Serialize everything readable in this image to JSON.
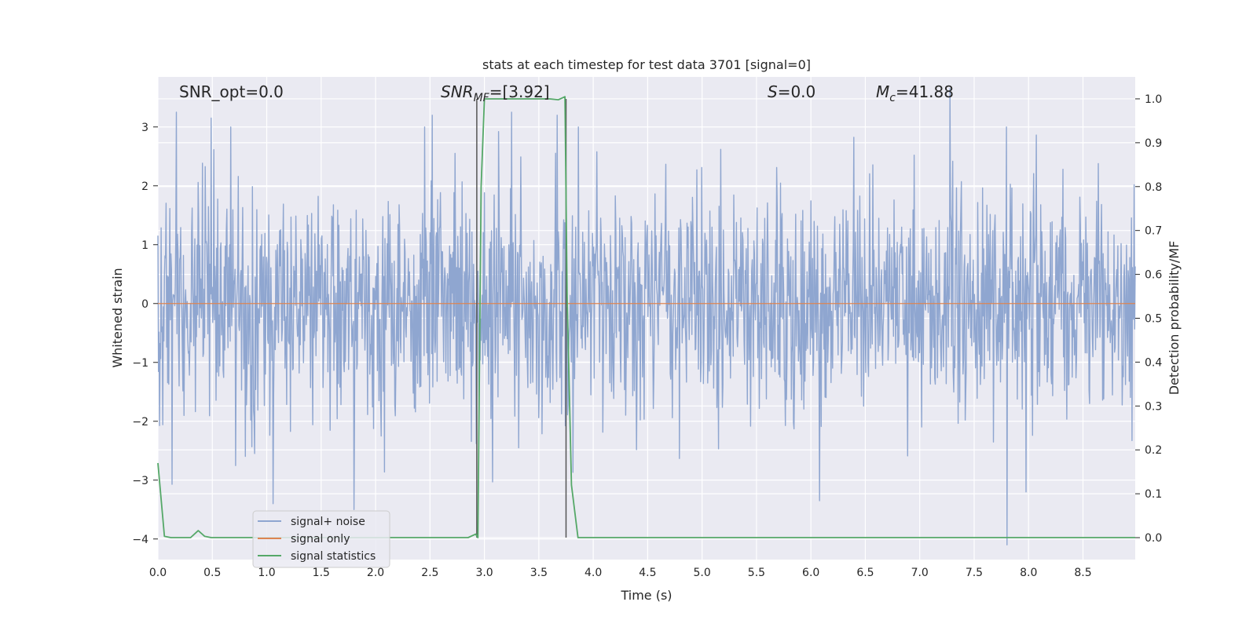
{
  "chart_data": {
    "type": "line",
    "title": "stats at each timestep for test data 3701 [signal=0]",
    "xlabel": "Time (s)",
    "ylabel": "Whitened strain",
    "ylabel_right": "Detection probability/MF",
    "xlim": [
      0.0,
      8.98
    ],
    "ylim": [
      -4.35,
      3.85
    ],
    "ylim_right": [
      -0.05,
      1.05
    ],
    "x_ticks": [
      0.0,
      0.5,
      1.0,
      1.5,
      2.0,
      2.5,
      3.0,
      3.5,
      4.0,
      4.5,
      5.0,
      5.5,
      6.0,
      6.5,
      7.0,
      7.5,
      8.0,
      8.5
    ],
    "x_tick_labels": [
      "0.0",
      "0.5",
      "1.0",
      "1.5",
      "2.0",
      "2.5",
      "3.0",
      "3.5",
      "4.0",
      "4.5",
      "5.0",
      "5.5",
      "6.0",
      "6.5",
      "7.0",
      "7.5",
      "8.0",
      "8.5"
    ],
    "y_ticks": [
      3,
      2,
      1,
      0,
      -1,
      -2,
      -3,
      -4
    ],
    "y_tick_labels": [
      "3",
      "2",
      "1",
      "0",
      "−1",
      "−2",
      "−3",
      "−4"
    ],
    "y_ticks_right": [
      1.0,
      0.9,
      0.8,
      0.7,
      0.6,
      0.5,
      0.4,
      0.3,
      0.2,
      0.1,
      0.0
    ],
    "y_tick_labels_right": [
      "1.0",
      "0.9",
      "0.8",
      "0.7",
      "0.6",
      "0.5",
      "0.4",
      "0.3",
      "0.2",
      "0.1",
      "0.0"
    ],
    "grid": true,
    "legend_position": "lower-left",
    "annotations": {
      "snr_opt": "SNR_opt=0.0",
      "snr_mf_main": "SNR",
      "snr_mf_sub": "MF",
      "snr_mf_value": "=[3.92]",
      "s_main": "S",
      "s_value": "=0.0",
      "mc_main": "M",
      "mc_sub": "c",
      "mc_value": "=41.88"
    },
    "vertical_lines_x": [
      2.93,
      3.75
    ],
    "series": [
      {
        "name": "signal+ noise",
        "color": "#8fa6d0",
        "noise": {
          "samples": 1800,
          "seed": 3701,
          "std": 1.0,
          "notable_peaks": [
            {
              "x": 0.17,
              "y": 3.25
            },
            {
              "x": 0.49,
              "y": 2.9
            },
            {
              "x": 0.49,
              "y": 3.15
            },
            {
              "x": 1.06,
              "y": -3.4
            },
            {
              "x": 1.8,
              "y": -3.5
            },
            {
              "x": 2.52,
              "y": 3.2
            },
            {
              "x": 3.25,
              "y": 3.25
            },
            {
              "x": 3.67,
              "y": 3.2
            },
            {
              "x": 7.28,
              "y": 3.65
            },
            {
              "x": 7.8,
              "y": -4.1
            },
            {
              "x": 6.08,
              "y": -3.35
            }
          ]
        }
      },
      {
        "name": "signal only",
        "color": "#dd8452",
        "x": [
          0.0,
          8.98
        ],
        "y": [
          0.0,
          0.0
        ]
      },
      {
        "name": "signal statistics",
        "color": "#55a868",
        "axis": "right",
        "x": [
          0.0,
          0.06,
          0.12,
          0.18,
          0.3,
          0.37,
          0.43,
          0.49,
          0.6,
          2.85,
          2.92,
          2.94,
          2.97,
          3.0,
          3.08,
          3.6,
          3.68,
          3.74,
          3.76,
          3.8,
          3.86,
          4.0,
          8.98
        ],
        "y": [
          0.17,
          0.003,
          0.0,
          0.0,
          0.0,
          0.016,
          0.003,
          0.0,
          0.0,
          0.0,
          0.008,
          0.0,
          0.8,
          1.0,
          1.0,
          1.0,
          0.998,
          1.005,
          0.55,
          0.12,
          0.0,
          0.0,
          0.0
        ]
      }
    ]
  }
}
